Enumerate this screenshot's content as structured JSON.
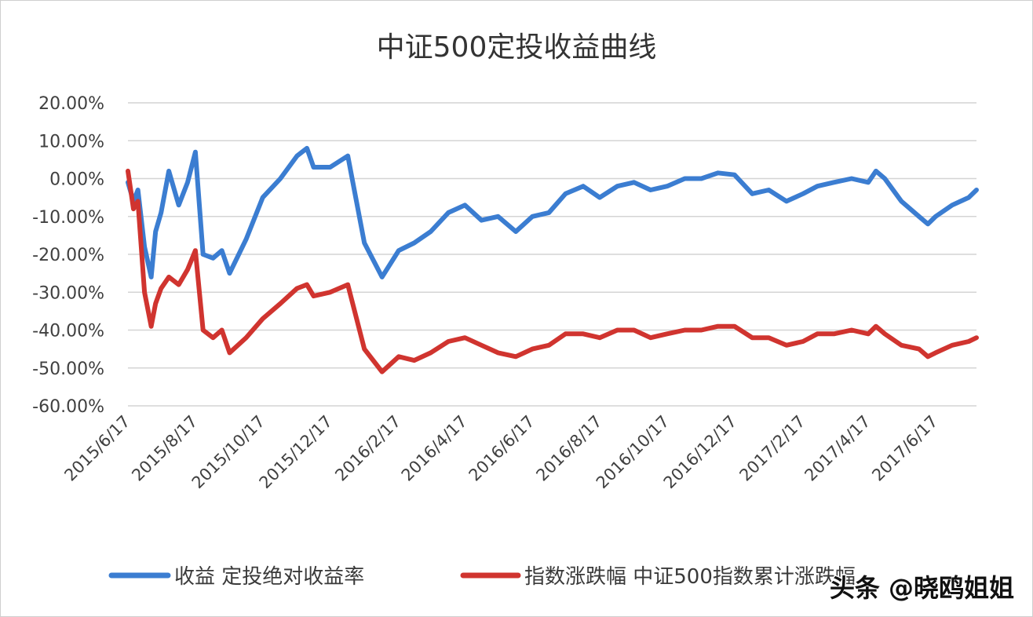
{
  "chart_data": {
    "type": "line",
    "title": "中证500定投收益曲线",
    "xlabel": "",
    "ylabel": "",
    "ylim": [
      -60,
      20
    ],
    "y_ticks": [
      "20.00%",
      "10.00%",
      "0.00%",
      "-10.00%",
      "-20.00%",
      "-30.00%",
      "-40.00%",
      "-50.00%",
      "-60.00%"
    ],
    "y_tick_values": [
      20,
      10,
      0,
      -10,
      -20,
      -30,
      -40,
      -50,
      -60
    ],
    "x_ticks": [
      "2015/6/17",
      "2015/8/17",
      "2015/10/17",
      "2015/12/17",
      "2016/2/17",
      "2016/4/17",
      "2016/6/17",
      "2016/8/17",
      "2016/10/17",
      "2016/12/17",
      "2017/2/17",
      "2017/4/17",
      "2017/6/17"
    ],
    "xlim": [
      "2015/6/17",
      "2017/7/24"
    ],
    "grid": "horizontal",
    "legend_position": "bottom",
    "x": [
      "2015/6/17",
      "2015/6/22",
      "2015/6/26",
      "2015/7/2",
      "2015/7/8",
      "2015/7/12",
      "2015/7/17",
      "2015/7/24",
      "2015/8/2",
      "2015/8/10",
      "2015/8/17",
      "2015/8/24",
      "2015/9/2",
      "2015/9/10",
      "2015/9/17",
      "2015/10/2",
      "2015/10/17",
      "2015/11/2",
      "2015/11/17",
      "2015/11/26",
      "2015/12/2",
      "2015/12/17",
      "2016/1/2",
      "2016/1/17",
      "2016/2/2",
      "2016/2/17",
      "2016/3/2",
      "2016/3/17",
      "2016/4/2",
      "2016/4/17",
      "2016/5/2",
      "2016/5/17",
      "2016/6/2",
      "2016/6/17",
      "2016/7/2",
      "2016/7/17",
      "2016/8/2",
      "2016/8/17",
      "2016/9/2",
      "2016/9/17",
      "2016/10/2",
      "2016/10/17",
      "2016/11/2",
      "2016/11/17",
      "2016/12/2",
      "2016/12/17",
      "2017/1/2",
      "2017/1/17",
      "2017/2/2",
      "2017/2/17",
      "2017/3/2",
      "2017/3/17",
      "2017/4/2",
      "2017/4/17",
      "2017/4/24",
      "2017/5/2",
      "2017/5/17",
      "2017/6/2",
      "2017/6/10",
      "2017/6/17",
      "2017/7/2",
      "2017/7/17",
      "2017/7/24"
    ],
    "series": [
      {
        "name": "收益 定投绝对收益率",
        "color": "#3b7dd1",
        "values": [
          -1,
          -6,
          -3,
          -18,
          -26,
          -14,
          -9,
          2,
          -7,
          -1,
          7,
          -20,
          -21,
          -19,
          -25,
          -16,
          -5,
          0,
          6,
          8,
          3,
          3,
          6,
          -17,
          -26,
          -19,
          -17,
          -14,
          -9,
          -7,
          -11,
          -10,
          -14,
          -10,
          -9,
          -4,
          -2,
          -5,
          -2,
          -1,
          -3,
          -2,
          0,
          0,
          1.5,
          1,
          -4,
          -3,
          -6,
          -4,
          -2,
          -1,
          0,
          -1,
          2,
          0,
          -6,
          -10,
          -12,
          -10,
          -7,
          -5,
          -3
        ]
      },
      {
        "name": "指数涨跌幅 中证500指数累计涨跌幅",
        "color": "#d0342f",
        "values": [
          2,
          -8,
          -6,
          -30,
          -39,
          -33,
          -29,
          -26,
          -28,
          -24,
          -19,
          -40,
          -42,
          -40,
          -46,
          -42,
          -37,
          -33,
          -29,
          -28,
          -31,
          -30,
          -28,
          -45,
          -51,
          -47,
          -48,
          -46,
          -43,
          -42,
          -44,
          -46,
          -47,
          -45,
          -44,
          -41,
          -41,
          -42,
          -40,
          -40,
          -42,
          -41,
          -40,
          -40,
          -39,
          -39,
          -42,
          -42,
          -44,
          -43,
          -41,
          -41,
          -40,
          -41,
          -39,
          -41,
          -44,
          -45,
          -47,
          -46,
          -44,
          -43,
          -42
        ]
      }
    ]
  },
  "legend": [
    "收益 定投绝对收益率",
    "指数涨跌幅 中证500指数累计涨跌幅"
  ],
  "watermark": "头条 @晓鸥姐姐"
}
